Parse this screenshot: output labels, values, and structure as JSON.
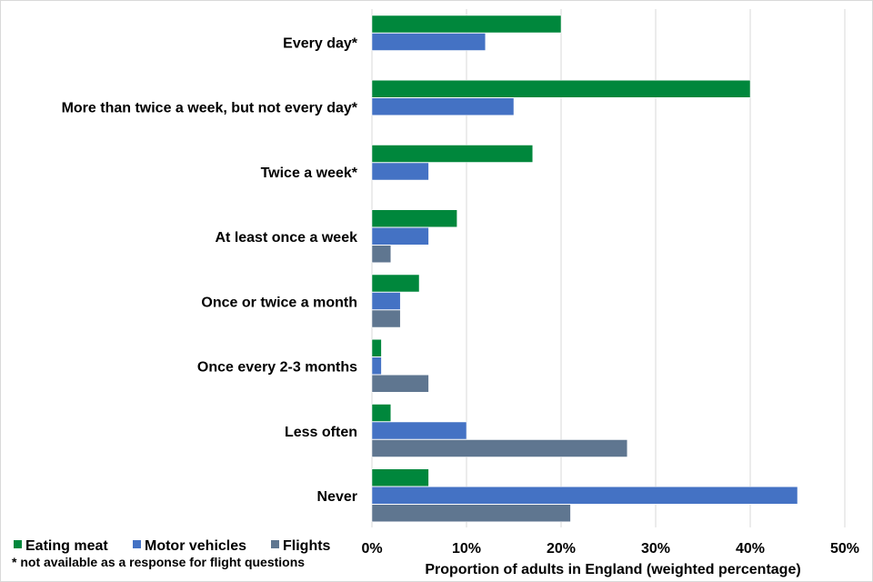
{
  "chart_data": {
    "type": "bar",
    "orientation": "horizontal",
    "categories": [
      "Every day*",
      "More than twice a week, but not every day*",
      "Twice a week*",
      "At least once a week",
      "Once or twice a month",
      "Once every 2-3 months",
      "Less often",
      "Never"
    ],
    "series": [
      {
        "name": "Eating meat",
        "color": "#00873c",
        "values": [
          20,
          40,
          17,
          9,
          5,
          1,
          2,
          6
        ]
      },
      {
        "name": "Motor vehicles",
        "color": "#4472c4",
        "values": [
          12,
          15,
          6,
          6,
          3,
          1,
          10,
          45
        ]
      },
      {
        "name": "Flights",
        "color": "#5f7690",
        "values": [
          null,
          null,
          null,
          2,
          3,
          6,
          27,
          21
        ]
      }
    ],
    "xlim": [
      0,
      50
    ],
    "xticks": [
      "0%",
      "10%",
      "20%",
      "30%",
      "40%",
      "50%"
    ],
    "xlabel": "Proportion of adults in England (weighted percentage)",
    "ylabel": "",
    "grid": true,
    "legend_position": "bottom-left",
    "footnote": "* not available as a response for flight questions"
  }
}
